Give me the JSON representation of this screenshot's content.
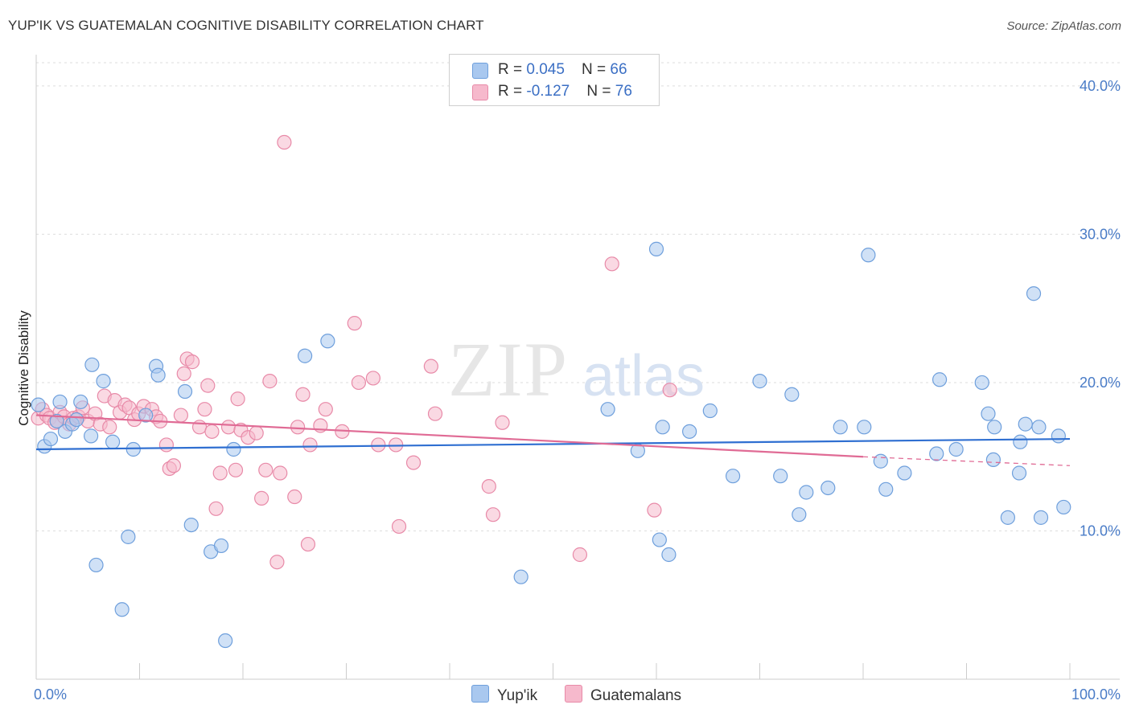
{
  "title": "YUP'IK VS GUATEMALAN COGNITIVE DISABILITY CORRELATION CHART",
  "source": "Source: ZipAtlas.com",
  "watermark": {
    "zip": "ZIP",
    "atlas": "atlas"
  },
  "colors": {
    "blue_fill": "#a9c8ef",
    "blue_stroke": "#6e9fdc",
    "blue_line": "#2f6fd1",
    "pink_fill": "#f6b9cc",
    "pink_stroke": "#e88aa8",
    "pink_line": "#e06b95",
    "grid": "#dddddd",
    "tick_text": "#4a7cc7"
  },
  "legend": {
    "rows": [
      {
        "r_label": "R = ",
        "r_value": "0.045",
        "n_label": "N = ",
        "n_value": "66",
        "color": "#a9c8ef",
        "border": "#6e9fdc"
      },
      {
        "r_label": "R = ",
        "r_value": "-0.127",
        "n_label": "N = ",
        "n_value": "76",
        "color": "#f6b9cc",
        "border": "#e88aa8"
      }
    ]
  },
  "bottom_legend": [
    {
      "label": "Yup'ik",
      "color": "#a9c8ef",
      "border": "#6e9fdc"
    },
    {
      "label": "Guatemalans",
      "color": "#f6b9cc",
      "border": "#e88aa8"
    }
  ],
  "chart_data": {
    "type": "scatter",
    "title": "YUP'IK VS GUATEMALAN COGNITIVE DISABILITY CORRELATION CHART",
    "xlabel": "",
    "ylabel": "Cognitive Disability",
    "xlim": [
      0,
      100
    ],
    "ylim": [
      0,
      42
    ],
    "x_tick_labels": [
      {
        "value": 0,
        "label": "0.0%"
      },
      {
        "value": 100,
        "label": "100.0%"
      }
    ],
    "y_tick_labels": [
      {
        "value": 10,
        "label": "10.0%"
      },
      {
        "value": 20,
        "label": "20.0%"
      },
      {
        "value": 30,
        "label": "30.0%"
      },
      {
        "value": 40,
        "label": "40.0%"
      }
    ],
    "grid": true,
    "legend_position": "top-center",
    "series": [
      {
        "name": "Yup'ik",
        "color": "#a9c8ef",
        "points": [
          [
            0.2,
            18.5
          ],
          [
            0.8,
            15.7
          ],
          [
            1.4,
            16.2
          ],
          [
            2.3,
            18.7
          ],
          [
            2.8,
            16.7
          ],
          [
            3.5,
            17.2
          ],
          [
            3.9,
            17.5
          ],
          [
            4.3,
            18.7
          ],
          [
            5.3,
            16.4
          ],
          [
            5.4,
            21.2
          ],
          [
            5.8,
            7.7
          ],
          [
            6.5,
            20.1
          ],
          [
            7.4,
            16.0
          ],
          [
            8.3,
            4.7
          ],
          [
            8.9,
            9.6
          ],
          [
            9.4,
            15.5
          ],
          [
            10.6,
            17.8
          ],
          [
            11.6,
            21.1
          ],
          [
            11.8,
            20.5
          ],
          [
            14.4,
            19.4
          ],
          [
            15.0,
            10.4
          ],
          [
            16.9,
            8.6
          ],
          [
            17.9,
            9.0
          ],
          [
            18.3,
            2.6
          ],
          [
            19.1,
            15.5
          ],
          [
            26.0,
            21.8
          ],
          [
            28.2,
            22.8
          ],
          [
            46.9,
            6.9
          ],
          [
            55.3,
            18.2
          ],
          [
            58.2,
            15.4
          ],
          [
            60.0,
            29.0
          ],
          [
            60.3,
            9.4
          ],
          [
            60.6,
            17.0
          ],
          [
            61.2,
            8.4
          ],
          [
            63.2,
            16.7
          ],
          [
            65.2,
            18.1
          ],
          [
            67.4,
            13.7
          ],
          [
            70.0,
            20.1
          ],
          [
            72.0,
            13.7
          ],
          [
            73.1,
            19.2
          ],
          [
            73.8,
            11.1
          ],
          [
            74.5,
            12.6
          ],
          [
            76.6,
            12.9
          ],
          [
            77.8,
            17.0
          ],
          [
            80.1,
            17.0
          ],
          [
            80.5,
            28.6
          ],
          [
            81.7,
            14.7
          ],
          [
            82.2,
            12.8
          ],
          [
            84.0,
            13.9
          ],
          [
            87.1,
            15.2
          ],
          [
            87.4,
            20.2
          ],
          [
            89.0,
            15.5
          ],
          [
            91.5,
            20.0
          ],
          [
            92.1,
            17.9
          ],
          [
            92.6,
            14.8
          ],
          [
            92.7,
            17.0
          ],
          [
            94.0,
            10.9
          ],
          [
            95.1,
            13.9
          ],
          [
            95.2,
            16.0
          ],
          [
            95.7,
            17.2
          ],
          [
            96.5,
            26.0
          ],
          [
            97.0,
            17.0
          ],
          [
            97.2,
            10.9
          ],
          [
            98.9,
            16.4
          ],
          [
            99.4,
            11.6
          ],
          [
            2.0,
            17.4
          ]
        ]
      },
      {
        "name": "Guatemalans",
        "color": "#f6b9cc",
        "points": [
          [
            0.2,
            17.6
          ],
          [
            0.6,
            18.2
          ],
          [
            1.0,
            17.8
          ],
          [
            1.3,
            17.6
          ],
          [
            1.8,
            17.3
          ],
          [
            2.0,
            17.4
          ],
          [
            2.3,
            18.0
          ],
          [
            2.7,
            17.7
          ],
          [
            3.2,
            17.2
          ],
          [
            3.6,
            17.6
          ],
          [
            4.1,
            17.7
          ],
          [
            4.5,
            18.3
          ],
          [
            5.0,
            17.4
          ],
          [
            5.7,
            17.9
          ],
          [
            6.2,
            17.2
          ],
          [
            6.6,
            19.1
          ],
          [
            7.1,
            17.0
          ],
          [
            7.6,
            18.8
          ],
          [
            8.1,
            18.0
          ],
          [
            8.6,
            18.5
          ],
          [
            9.0,
            18.3
          ],
          [
            9.5,
            17.5
          ],
          [
            9.9,
            17.9
          ],
          [
            10.4,
            18.4
          ],
          [
            11.2,
            18.2
          ],
          [
            11.6,
            17.7
          ],
          [
            12.0,
            17.4
          ],
          [
            12.6,
            15.8
          ],
          [
            12.9,
            14.2
          ],
          [
            13.3,
            14.4
          ],
          [
            14.0,
            17.8
          ],
          [
            14.3,
            20.6
          ],
          [
            14.6,
            21.6
          ],
          [
            15.1,
            21.4
          ],
          [
            15.8,
            17.0
          ],
          [
            16.3,
            18.2
          ],
          [
            16.6,
            19.8
          ],
          [
            17.0,
            16.7
          ],
          [
            17.4,
            11.5
          ],
          [
            17.8,
            13.9
          ],
          [
            18.6,
            17.0
          ],
          [
            19.3,
            14.1
          ],
          [
            19.5,
            18.9
          ],
          [
            19.8,
            16.8
          ],
          [
            20.5,
            16.3
          ],
          [
            21.3,
            16.6
          ],
          [
            21.8,
            12.2
          ],
          [
            22.2,
            14.1
          ],
          [
            22.6,
            20.1
          ],
          [
            23.3,
            7.9
          ],
          [
            23.6,
            13.9
          ],
          [
            24.0,
            36.2
          ],
          [
            25.0,
            12.3
          ],
          [
            25.3,
            17.0
          ],
          [
            25.8,
            19.2
          ],
          [
            26.3,
            9.1
          ],
          [
            26.5,
            15.8
          ],
          [
            27.5,
            17.1
          ],
          [
            28.0,
            18.2
          ],
          [
            29.6,
            16.7
          ],
          [
            30.8,
            24.0
          ],
          [
            31.2,
            20.0
          ],
          [
            32.6,
            20.3
          ],
          [
            33.1,
            15.8
          ],
          [
            34.8,
            15.8
          ],
          [
            35.1,
            10.3
          ],
          [
            36.5,
            14.6
          ],
          [
            38.2,
            21.1
          ],
          [
            38.6,
            17.9
          ],
          [
            43.8,
            13.0
          ],
          [
            44.2,
            11.1
          ],
          [
            45.1,
            17.3
          ],
          [
            52.6,
            8.4
          ],
          [
            55.7,
            28.0
          ],
          [
            59.8,
            11.4
          ],
          [
            61.3,
            19.5
          ]
        ]
      }
    ],
    "trend_lines": [
      {
        "series": "Yup'ik",
        "x": [
          0,
          100
        ],
        "y": [
          15.5,
          16.2
        ]
      },
      {
        "series": "Guatemalans",
        "x": [
          0,
          80
        ],
        "y": [
          17.8,
          15.0
        ],
        "dashed_extension": {
          "x": [
            80,
            100
          ],
          "y": [
            15.0,
            14.4
          ]
        }
      }
    ]
  }
}
